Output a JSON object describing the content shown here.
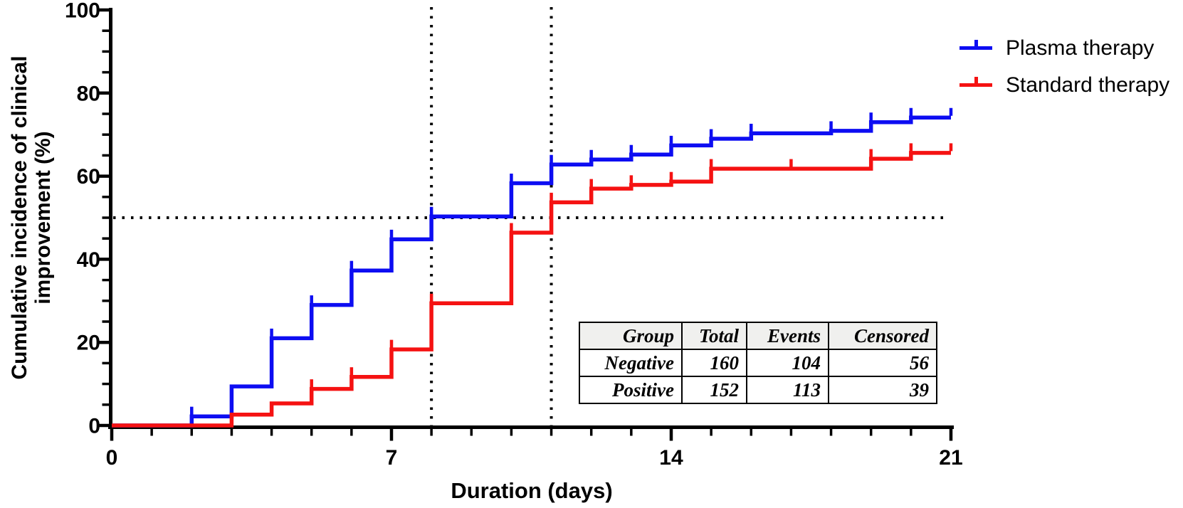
{
  "figure": {
    "x_axis_title": "Duration (days)",
    "y_axis_title_line1": "Cumulative incidence of clinical",
    "y_axis_title_line2": "improvement (%)"
  },
  "chart_data": {
    "type": "line",
    "subtype": "kaplan_meier_cumulative_incidence_step",
    "title": "",
    "xlabel": "Duration (days)",
    "ylabel": "Cumulative incidence of clinical improvement (%)",
    "xlim": [
      0,
      21
    ],
    "ylim": [
      0,
      100
    ],
    "x_major_ticks": [
      0,
      7,
      14,
      21
    ],
    "x_minor_tick_step_days": 1,
    "y_major_ticks": [
      0,
      20,
      40,
      60,
      80,
      100
    ],
    "y_minor_tick_step_pct": 5,
    "grid": false,
    "legend_position": "top-right-outside",
    "guides": {
      "style": "dotted",
      "color": "#000000",
      "horizontal_pct": 50,
      "vertical_median_days": [
        8,
        11
      ]
    },
    "series": [
      {
        "name": "Plasma therapy",
        "color": "#0d0df2",
        "median_day": 8,
        "end_day": 21,
        "steps": [
          [
            0,
            0
          ],
          [
            2,
            2.2
          ],
          [
            3,
            9.4
          ],
          [
            4,
            21.0
          ],
          [
            5,
            29.0
          ],
          [
            6,
            37.3
          ],
          [
            7,
            44.8
          ],
          [
            8,
            50.3
          ],
          [
            10,
            58.3
          ],
          [
            11,
            62.8
          ],
          [
            12,
            64.0
          ],
          [
            13,
            65.2
          ],
          [
            14,
            67.4
          ],
          [
            15,
            69.0
          ],
          [
            16,
            70.3
          ],
          [
            18,
            70.9
          ],
          [
            19,
            73.0
          ],
          [
            20,
            74.1
          ]
        ],
        "censor_tick_days": [
          2,
          4,
          5,
          6,
          7,
          8,
          10,
          11,
          12,
          13,
          14,
          15,
          16,
          18,
          19,
          20,
          21
        ]
      },
      {
        "name": "Standard therapy",
        "color": "#f51212",
        "median_day": 11,
        "end_day": 21,
        "steps": [
          [
            0,
            0
          ],
          [
            3,
            2.6
          ],
          [
            4,
            5.3
          ],
          [
            5,
            8.8
          ],
          [
            6,
            11.7
          ],
          [
            7,
            18.3
          ],
          [
            8,
            29.4
          ],
          [
            10,
            46.4
          ],
          [
            11,
            53.7
          ],
          [
            12,
            57.0
          ],
          [
            13,
            57.9
          ],
          [
            14,
            58.7
          ],
          [
            15,
            61.8
          ],
          [
            19,
            64.2
          ],
          [
            20,
            65.6
          ]
        ],
        "censor_tick_days": [
          5,
          6,
          7,
          8,
          10,
          11,
          12,
          13,
          14,
          15,
          17,
          19,
          20,
          21
        ]
      }
    ]
  },
  "table": {
    "headers": [
      "Group",
      "Total",
      "Events",
      "Censored"
    ],
    "rows": [
      [
        "Negative",
        "160",
        "104",
        "56"
      ],
      [
        "Positive",
        "152",
        "113",
        "39"
      ]
    ]
  }
}
